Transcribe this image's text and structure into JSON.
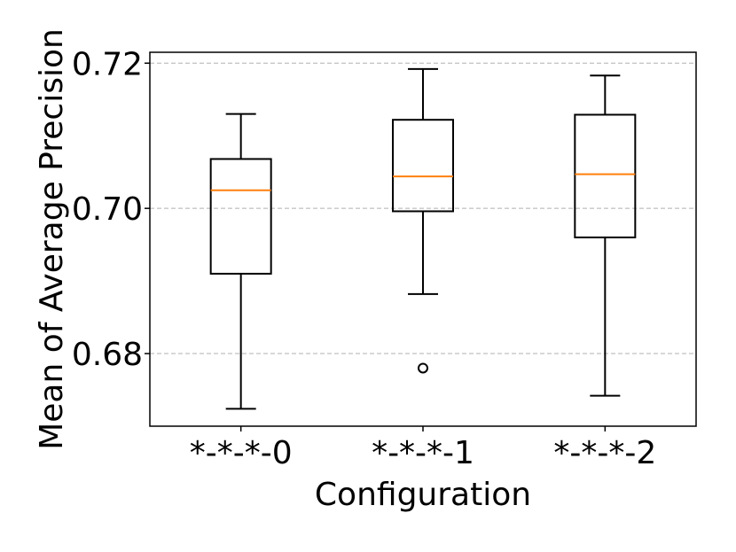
{
  "chart_data": {
    "type": "box",
    "xlabel": "Configuration",
    "ylabel": "Mean of Average Precision",
    "ylim": [
      0.67,
      0.7215
    ],
    "yticks": [
      "0.68",
      "0.70",
      "0.72"
    ],
    "ytick_values": [
      0.68,
      0.7,
      0.72
    ],
    "grid": "horizontal dashed",
    "categories": [
      "*-*-*-0",
      "*-*-*-1",
      "*-*-*-2"
    ],
    "boxes": [
      {
        "label": "*-*-*-0",
        "whisker_low": 0.6724,
        "q1": 0.691,
        "median": 0.7025,
        "q3": 0.7068,
        "whisker_high": 0.713,
        "fliers": []
      },
      {
        "label": "*-*-*-1",
        "whisker_low": 0.6882,
        "q1": 0.6996,
        "median": 0.7044,
        "q3": 0.7122,
        "whisker_high": 0.7192,
        "fliers": [
          0.678
        ]
      },
      {
        "label": "*-*-*-2",
        "whisker_low": 0.6742,
        "q1": 0.696,
        "median": 0.7047,
        "q3": 0.7129,
        "whisker_high": 0.7183,
        "fliers": []
      }
    ],
    "colors": {
      "box": "#000000",
      "median": "#ff7f0e",
      "grid": "#b0b0b0"
    }
  }
}
